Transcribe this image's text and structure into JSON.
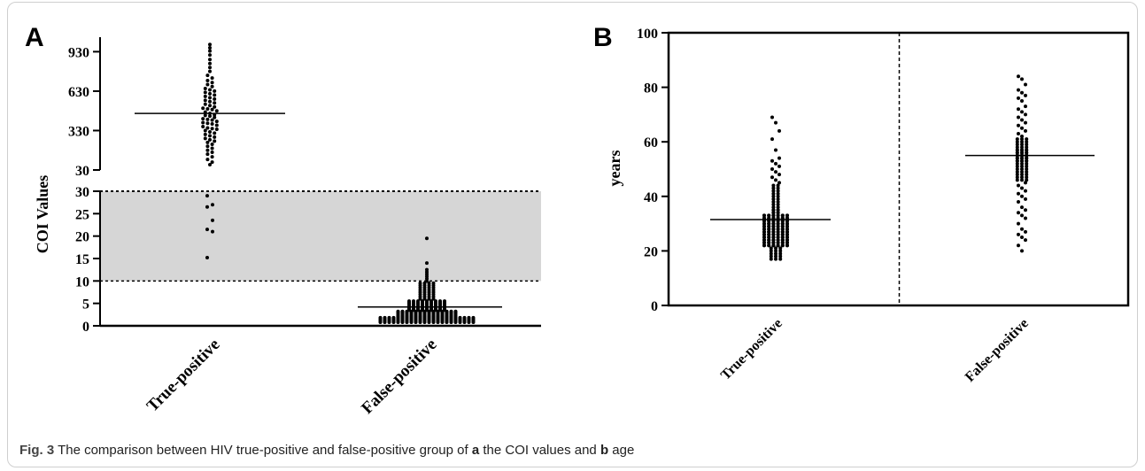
{
  "chart_data": [
    {
      "panel_letter": "A",
      "type": "scatter",
      "subtype": "dot-plot with mean line, broken y-axis",
      "ylabel": "COI Values",
      "categories": [
        "True-positive",
        "False-positive"
      ],
      "upper_axis": {
        "ticks": [
          "30",
          "330",
          "630",
          "930"
        ],
        "ylim": [
          30,
          1000
        ]
      },
      "lower_axis": {
        "ticks": [
          "0",
          "5",
          "10",
          "15",
          "20",
          "25",
          "30"
        ],
        "ylim": [
          0,
          30
        ]
      },
      "shaded_band": [
        10,
        30
      ],
      "means": [
        460,
        4.2
      ],
      "series": [
        {
          "category": "True-positive",
          "values_upper": [
            985,
            960,
            935,
            905,
            870,
            840,
            810,
            780,
            750,
            730,
            710,
            695,
            680,
            665,
            650,
            640,
            630,
            620,
            610,
            600,
            590,
            580,
            570,
            560,
            550,
            540,
            530,
            520,
            510,
            500,
            495,
            490,
            480,
            470,
            460,
            450,
            445,
            440,
            430,
            420,
            415,
            410,
            400,
            390,
            385,
            380,
            370,
            360,
            350,
            345,
            340,
            330,
            320,
            310,
            300,
            290,
            280,
            270,
            260,
            250,
            240,
            225,
            210,
            195,
            180,
            165,
            150,
            130,
            110,
            90,
            70
          ],
          "values_lower": [
            29,
            27,
            26.5,
            23.5,
            21.5,
            21,
            15.2
          ]
        },
        {
          "category": "False-positive",
          "values_lower": [
            19.5,
            14,
            12.5,
            12,
            11.5,
            11,
            10.5,
            10,
            9.5,
            9,
            8.5,
            8,
            7.5,
            7,
            6.5,
            6,
            5.5,
            5.2,
            5,
            4.8,
            4.5,
            4.2,
            4,
            3.8,
            3.5,
            3.2,
            3,
            2.8,
            2.5,
            2.2,
            2,
            1.8,
            1.6,
            1.4,
            1.2,
            1,
            0.8
          ]
        }
      ]
    },
    {
      "panel_letter": "B",
      "type": "scatter",
      "subtype": "dot-plot with mean line",
      "ylabel": "years",
      "categories": [
        "True-positive",
        "False-positive"
      ],
      "ylim": [
        0,
        100
      ],
      "ticks": [
        "0",
        "20",
        "40",
        "60",
        "80",
        "100"
      ],
      "means": [
        31.5,
        55
      ],
      "series": [
        {
          "category": "True-positive",
          "values": [
            69,
            67,
            64,
            61,
            57,
            54,
            53,
            52,
            51,
            50,
            49,
            48,
            47,
            46,
            45,
            44,
            43,
            42,
            41,
            40,
            39,
            38,
            37,
            36,
            35,
            35,
            34,
            34,
            33,
            33,
            32,
            32,
            31,
            31,
            30,
            30,
            29,
            29,
            28,
            28,
            27,
            27,
            26,
            26,
            25,
            25,
            24,
            24,
            23,
            23,
            22,
            22,
            21,
            20,
            19,
            18,
            17
          ]
        },
        {
          "category": "False-positive",
          "values": [
            84,
            83,
            81,
            79,
            78,
            77,
            76,
            75,
            73,
            72,
            71,
            70,
            69,
            68,
            67,
            66,
            65,
            64,
            63,
            62,
            61,
            60,
            59,
            58,
            57,
            57,
            56,
            56,
            55,
            55,
            54,
            54,
            53,
            53,
            52,
            51,
            50,
            49,
            48,
            47,
            46,
            45,
            44,
            43,
            42,
            41,
            40,
            39,
            38,
            36,
            35,
            34,
            33,
            32,
            30,
            28,
            27,
            26,
            25,
            24,
            22,
            20
          ]
        }
      ]
    }
  ],
  "caption": {
    "fig_label": "Fig. 3",
    "text_before_a": "The comparison between HIV true-positive and false-positive group of",
    "letter_a": "a",
    "text_middle": "the COI values and",
    "letter_b": "b",
    "text_after": "age"
  }
}
